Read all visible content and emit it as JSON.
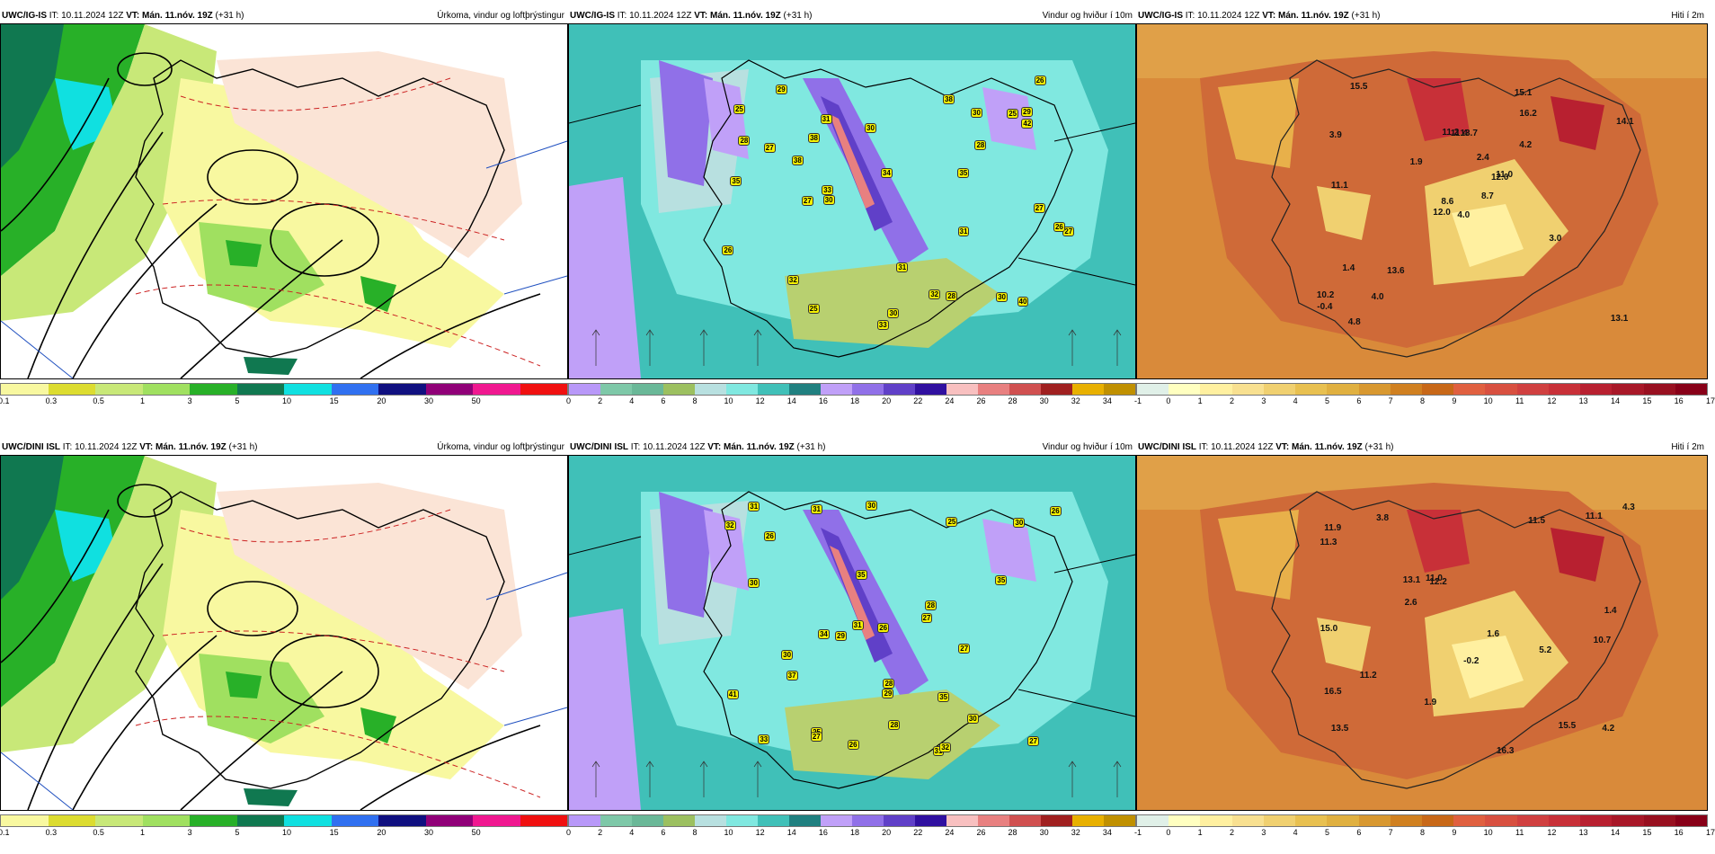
{
  "rows": [
    {
      "precip": {
        "model": "UWC/IG-IS",
        "it": "10.11.2024 12Z",
        "vt": "Mán. 11.nóv. 19Z",
        "lead": "(+31 h)",
        "title": "Úrkoma, vindur og loftþrýstingur"
      },
      "wind": {
        "model": "UWC/IG-IS",
        "it": "10.11.2024 12Z",
        "vt": "Mán. 11.nóv. 19Z",
        "lead": "(+31 h)",
        "title": "Vindur og hviður í 10m"
      },
      "temp": {
        "model": "UWC/IG-IS",
        "it": "10.11.2024 12Z",
        "vt": "Mán. 11.nóv. 19Z",
        "lead": "(+31 h)",
        "title": "Hiti í 2m"
      },
      "temp_labels": [
        "4.0",
        "3.9",
        "8.6",
        "10.2",
        "12.0",
        "13.6",
        "15.1",
        "13.7",
        "16.2",
        "8.7",
        "15.5",
        "13.1",
        "11.1",
        "14.1",
        "12.0",
        "4.2",
        "4.8",
        "11.2",
        "2.4",
        "1.4",
        "1.9",
        "-0.4",
        "4.0",
        "11.4",
        "11.0",
        "3.0"
      ],
      "wind_labels": [
        "28",
        "38",
        "35",
        "30",
        "25",
        "33",
        "31",
        "30",
        "29",
        "27",
        "26",
        "31",
        "28",
        "32",
        "35",
        "25",
        "33",
        "30",
        "40",
        "32",
        "30",
        "27",
        "34",
        "31",
        "30",
        "38",
        "42",
        "38",
        "29",
        "27",
        "26",
        "28",
        "26",
        "27",
        "25"
      ]
    },
    {
      "precip": {
        "model": "UWC/DINI ISL",
        "it": "10.11.2024 12Z",
        "vt": "Mán. 11.nóv. 19Z",
        "lead": "(+31 h)",
        "title": "Úrkoma, vindur og loftþrýstingur"
      },
      "wind": {
        "model": "UWC/DINI ISL",
        "it": "10.11.2024 12Z",
        "vt": "Mán. 11.nóv. 19Z",
        "lead": "(+31 h)",
        "title": "Vindur og hviður í 10m"
      },
      "temp": {
        "model": "UWC/DINI ISL",
        "it": "10.11.2024 12Z",
        "vt": "Mán. 11.nóv. 19Z",
        "lead": "(+31 h)",
        "title": "Hiti í 2m"
      },
      "temp_labels": [
        "5.2",
        "10.7",
        "13.5",
        "3.8",
        "12.2",
        "15.5",
        "16.5",
        "11.5",
        "13.1",
        "16.3",
        "11.3",
        "15.0",
        "11.9",
        "4.2",
        "1.9",
        "1.4",
        "-0.2",
        "1.6",
        "11.0",
        "11.2",
        "4.3",
        "11.1",
        "2.6"
      ],
      "wind_labels": [
        "26",
        "31",
        "25",
        "30",
        "31",
        "26",
        "34",
        "27",
        "30",
        "35",
        "30",
        "28",
        "31",
        "29",
        "25",
        "27",
        "30",
        "27",
        "29",
        "32",
        "35",
        "26",
        "28",
        "33",
        "35",
        "30",
        "41",
        "37",
        "31",
        "27",
        "26",
        "32",
        "28"
      ]
    }
  ],
  "legends": {
    "precip": {
      "ticks": [
        "0.1",
        "0.3",
        "0.5",
        "1",
        "3",
        "5",
        "10",
        "15",
        "20",
        "30",
        "50"
      ],
      "colors": [
        "#f8f8a0",
        "#dcdc30",
        "#c8e878",
        "#a0e060",
        "#28b028",
        "#107850",
        "#10e0e0",
        "#3070f0",
        "#101080",
        "#900078",
        "#f01890",
        "#f01010"
      ]
    },
    "wind": {
      "ticks": [
        "0",
        "2",
        "4",
        "6",
        "8",
        "10",
        "12",
        "14",
        "16",
        "18",
        "20",
        "22",
        "24",
        "26",
        "28",
        "30",
        "32",
        "34"
      ],
      "colors": [
        "#b898f8",
        "#7ec8a8",
        "#6ab898",
        "#9cc060",
        "#b8e0e0",
        "#80e8e0",
        "#40c0b8",
        "#208080",
        "#c0a0f8",
        "#9070e8",
        "#6040c8",
        "#3010a0",
        "#f8c0c0",
        "#e88080",
        "#d05050",
        "#a02020",
        "#e8b000",
        "#c09000"
      ]
    },
    "temp": {
      "ticks": [
        "-1",
        "0",
        "1",
        "2",
        "3",
        "4",
        "5",
        "6",
        "7",
        "8",
        "9",
        "10",
        "11",
        "12",
        "13",
        "14",
        "15",
        "16",
        "17"
      ],
      "colors": [
        "#e0f0e8",
        "#ffffc0",
        "#fff0a0",
        "#f8e090",
        "#f0d070",
        "#e8c050",
        "#e0b040",
        "#d89830",
        "#d08020",
        "#c86818",
        "#e06040",
        "#d85040",
        "#d04040",
        "#c83038",
        "#b82030",
        "#a81828",
        "#981020",
        "#880018"
      ]
    }
  }
}
